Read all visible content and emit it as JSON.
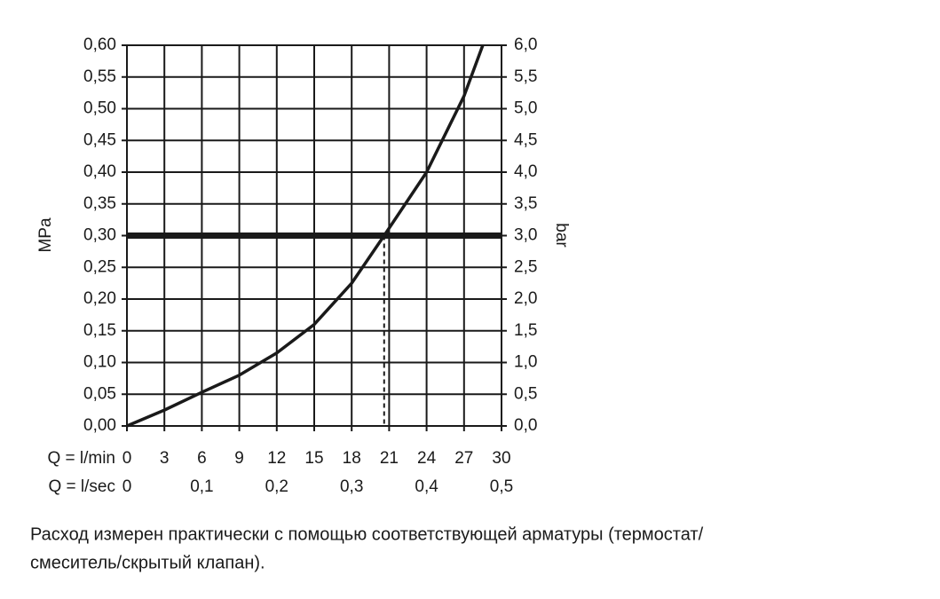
{
  "chart_data": {
    "type": "line",
    "x_label": "Q = l/min",
    "x2_label": "Q = l/sec",
    "y_label": "MPa",
    "y2_label": "bar",
    "xlim": [
      0,
      30
    ],
    "xticks": [
      0,
      3,
      6,
      9,
      12,
      15,
      18,
      21,
      24,
      27,
      30
    ],
    "x2lim": [
      0,
      0.5
    ],
    "x2ticks": [
      0,
      {
        "value": 0.1,
        "label": "0,1"
      },
      {
        "value": 0.2,
        "label": "0,2"
      },
      {
        "value": 0.3,
        "label": "0,3"
      },
      {
        "value": 0.4,
        "label": "0,4"
      },
      {
        "value": 0.5,
        "label": "0,5"
      }
    ],
    "ylim": [
      0,
      0.6
    ],
    "yticks": [
      {
        "value": 0,
        "label": "0,00"
      },
      {
        "value": 0.05,
        "label": "0,05"
      },
      {
        "value": 0.1,
        "label": "0,10"
      },
      {
        "value": 0.15,
        "label": "0,15"
      },
      {
        "value": 0.2,
        "label": "0,20"
      },
      {
        "value": 0.25,
        "label": "0,25"
      },
      {
        "value": 0.3,
        "label": "0,30"
      },
      {
        "value": 0.35,
        "label": "0,35"
      },
      {
        "value": 0.4,
        "label": "0,40"
      },
      {
        "value": 0.45,
        "label": "0,45"
      },
      {
        "value": 0.5,
        "label": "0,50"
      },
      {
        "value": 0.55,
        "label": "0,55"
      },
      {
        "value": 0.6,
        "label": "0,60"
      }
    ],
    "y2lim": [
      0,
      6
    ],
    "y2ticks": [
      {
        "value": 0,
        "label": "0,0"
      },
      {
        "value": 0.5,
        "label": "0,5"
      },
      {
        "value": 1,
        "label": "1,0"
      },
      {
        "value": 1.5,
        "label": "1,5"
      },
      {
        "value": 2,
        "label": "2,0"
      },
      {
        "value": 2.5,
        "label": "2,5"
      },
      {
        "value": 3,
        "label": "3,0"
      },
      {
        "value": 3.5,
        "label": "3,5"
      },
      {
        "value": 4,
        "label": "4,0"
      },
      {
        "value": 4.5,
        "label": "4,5"
      },
      {
        "value": 5,
        "label": "5,0"
      },
      {
        "value": 5.5,
        "label": "5,5"
      },
      {
        "value": 6,
        "label": "6,0"
      }
    ],
    "grid": true,
    "series": [
      {
        "color": "#1a1a1a",
        "x": [
          0,
          3,
          6,
          9,
          12,
          15,
          18,
          20.6,
          24,
          27,
          28.5
        ],
        "values": [
          0,
          0.025,
          0.053,
          0.08,
          0.115,
          0.16,
          0.225,
          0.3,
          0.4,
          0.52,
          0.6
        ]
      }
    ],
    "reference_y": 0.3,
    "reference_x": 20.6,
    "caption": [
      "Расход измерен практически с помощью соответствующей арматуры (термостат/",
      "смеситель/скрытый клапан)."
    ]
  }
}
